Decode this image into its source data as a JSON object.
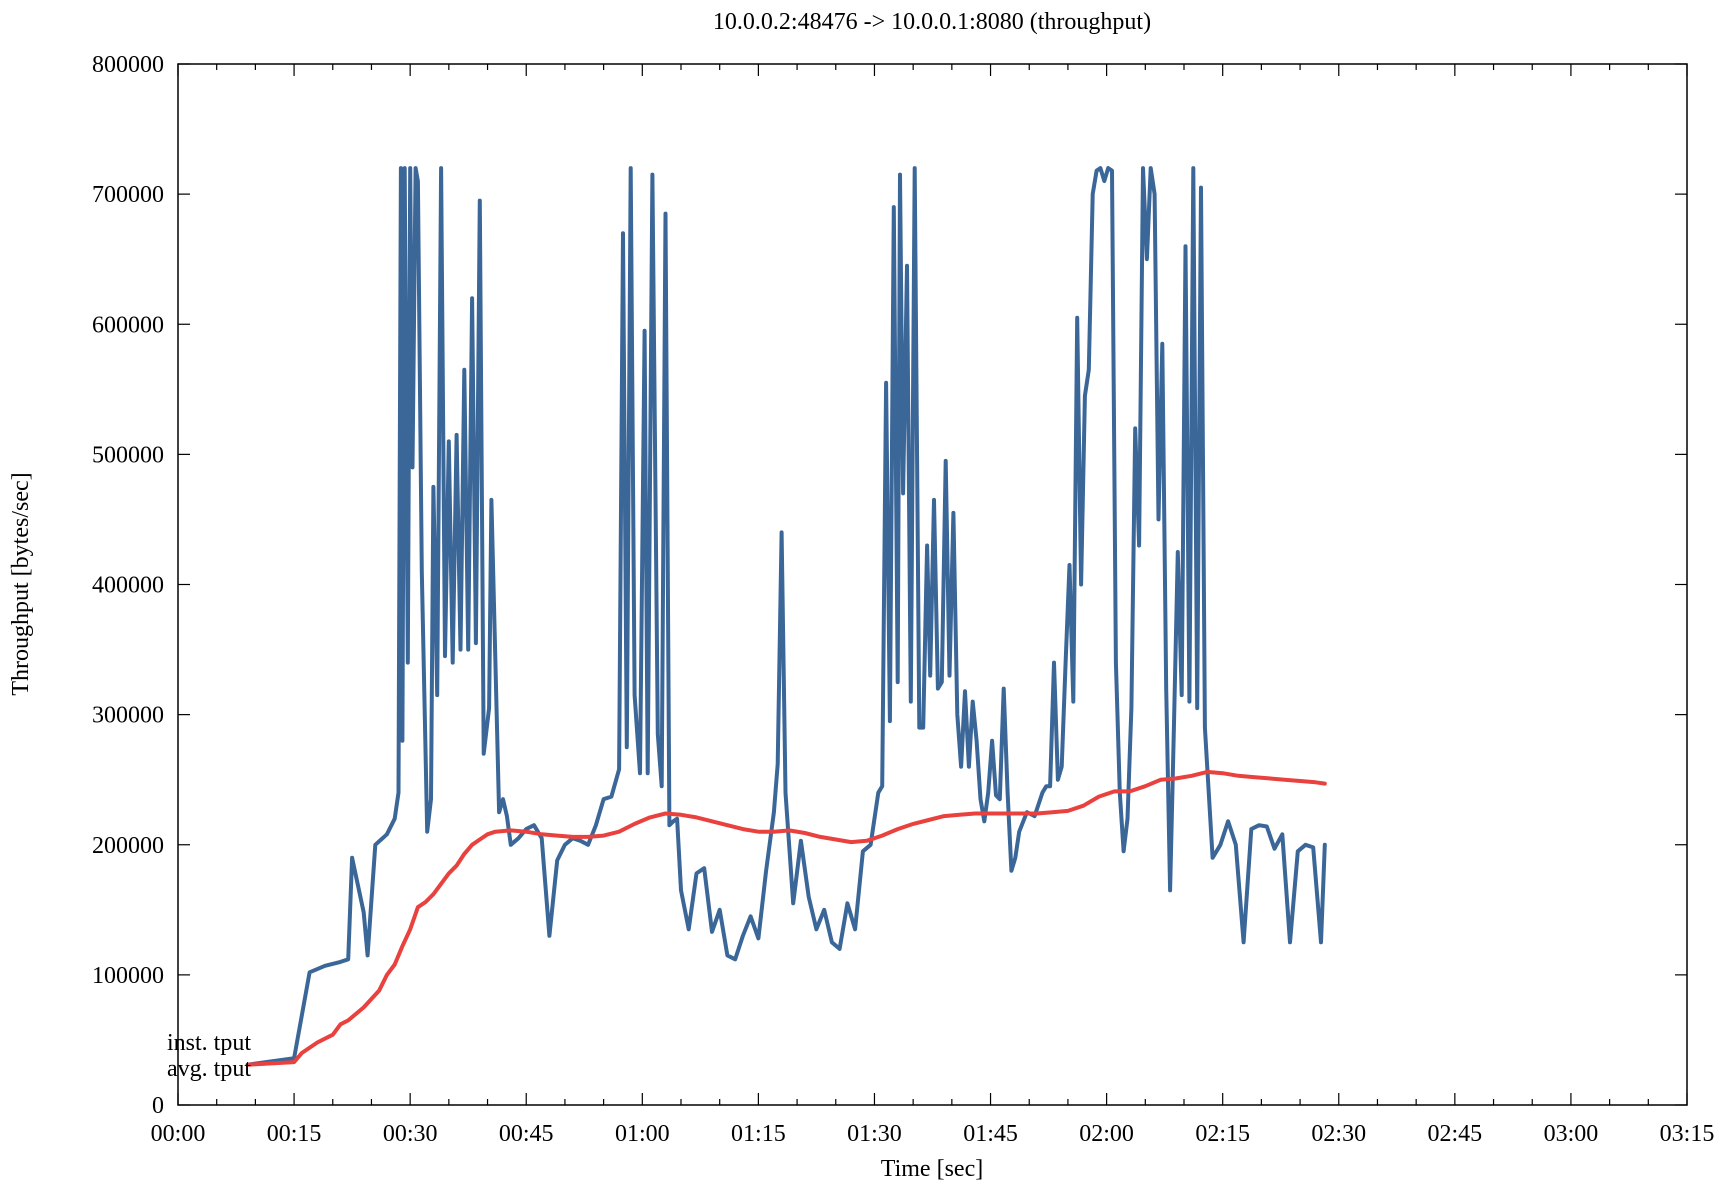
{
  "chart_data": {
    "type": "line",
    "title": "10.0.0.2:48476 -> 10.0.0.1:8080 (throughput)",
    "xlabel": "Time [sec]",
    "ylabel": "Throughput [bytes/sec]",
    "xlim": [
      0,
      195
    ],
    "ylim": [
      0,
      800000
    ],
    "x_tick_labels": [
      "00:00",
      "00:15",
      "00:30",
      "00:45",
      "01:00",
      "01:15",
      "01:30",
      "01:45",
      "02:00",
      "02:15",
      "02:30",
      "02:45",
      "03:00",
      "03:15"
    ],
    "y_tick_labels": [
      "0",
      "100000",
      "200000",
      "300000",
      "400000",
      "500000",
      "600000",
      "700000",
      "800000"
    ],
    "grid": false,
    "legend_position": "bottom-left",
    "series": [
      {
        "name": "inst. tput",
        "color": "#3b6698",
        "points": [
          [
            9,
            31000
          ],
          [
            15,
            36000
          ],
          [
            17,
            102000
          ],
          [
            19,
            107000
          ],
          [
            21,
            110000
          ],
          [
            22,
            112000
          ],
          [
            22.5,
            190000
          ],
          [
            24,
            148000
          ],
          [
            24.5,
            115000
          ],
          [
            25.5,
            200000
          ],
          [
            27,
            208000
          ],
          [
            28,
            220000
          ],
          [
            28.5,
            240000
          ],
          [
            28.8,
            720000
          ],
          [
            29,
            280000
          ],
          [
            29.3,
            720000
          ],
          [
            29.7,
            340000
          ],
          [
            30,
            720000
          ],
          [
            30.3,
            490000
          ],
          [
            30.7,
            720000
          ],
          [
            31,
            710000
          ],
          [
            31.5,
            410000
          ],
          [
            32.2,
            210000
          ],
          [
            32.7,
            235000
          ],
          [
            33,
            475000
          ],
          [
            33.5,
            315000
          ],
          [
            34,
            720000
          ],
          [
            34.5,
            345000
          ],
          [
            35,
            510000
          ],
          [
            35.5,
            340000
          ],
          [
            36,
            515000
          ],
          [
            36.5,
            350000
          ],
          [
            37,
            565000
          ],
          [
            37.5,
            350000
          ],
          [
            38,
            620000
          ],
          [
            38.5,
            355000
          ],
          [
            39,
            695000
          ],
          [
            39.5,
            270000
          ],
          [
            40.2,
            305000
          ],
          [
            40.5,
            465000
          ],
          [
            41.5,
            225000
          ],
          [
            42,
            235000
          ],
          [
            42.5,
            222000
          ],
          [
            43,
            200000
          ],
          [
            44,
            205000
          ],
          [
            45,
            212000
          ],
          [
            46,
            215000
          ],
          [
            47,
            205000
          ],
          [
            48,
            130000
          ],
          [
            49,
            188000
          ],
          [
            50,
            200000
          ],
          [
            51,
            205000
          ],
          [
            52,
            203000
          ],
          [
            53,
            200000
          ],
          [
            54,
            215000
          ],
          [
            55,
            235000
          ],
          [
            56,
            237000
          ],
          [
            57,
            258000
          ],
          [
            57.5,
            670000
          ],
          [
            58,
            275000
          ],
          [
            58.5,
            720000
          ],
          [
            59,
            315000
          ],
          [
            59.7,
            255000
          ],
          [
            60.3,
            595000
          ],
          [
            60.7,
            255000
          ],
          [
            61.3,
            715000
          ],
          [
            62,
            285000
          ],
          [
            62.5,
            245000
          ],
          [
            63,
            685000
          ],
          [
            63.5,
            215000
          ],
          [
            64,
            218000
          ],
          [
            64.5,
            220000
          ],
          [
            65,
            165000
          ],
          [
            66,
            135000
          ],
          [
            67,
            178000
          ],
          [
            68,
            182000
          ],
          [
            69,
            133000
          ],
          [
            70,
            150000
          ],
          [
            71,
            115000
          ],
          [
            72,
            112000
          ],
          [
            73,
            130000
          ],
          [
            74,
            145000
          ],
          [
            75,
            128000
          ],
          [
            76,
            180000
          ],
          [
            77,
            225000
          ],
          [
            77.5,
            262000
          ],
          [
            78,
            440000
          ],
          [
            78.5,
            240000
          ],
          [
            79.5,
            155000
          ],
          [
            80.5,
            203000
          ],
          [
            81.5,
            160000
          ],
          [
            82.5,
            135000
          ],
          [
            83.5,
            150000
          ],
          [
            84.5,
            125000
          ],
          [
            85.5,
            120000
          ],
          [
            86.5,
            155000
          ],
          [
            87.5,
            135000
          ],
          [
            88.5,
            195000
          ],
          [
            89.5,
            200000
          ],
          [
            90.5,
            240000
          ],
          [
            91,
            245000
          ],
          [
            91.5,
            555000
          ],
          [
            92,
            295000
          ],
          [
            92.5,
            690000
          ],
          [
            93,
            325000
          ],
          [
            93.3,
            715000
          ],
          [
            93.7,
            470000
          ],
          [
            94.2,
            645000
          ],
          [
            94.7,
            310000
          ],
          [
            95.2,
            720000
          ],
          [
            95.8,
            290000
          ],
          [
            96.3,
            290000
          ],
          [
            96.8,
            430000
          ],
          [
            97.2,
            330000
          ],
          [
            97.7,
            465000
          ],
          [
            98.2,
            320000
          ],
          [
            98.7,
            325000
          ],
          [
            99.2,
            495000
          ],
          [
            99.7,
            330000
          ],
          [
            100.2,
            455000
          ],
          [
            100.7,
            300000
          ],
          [
            101.2,
            260000
          ],
          [
            101.7,
            318000
          ],
          [
            102.2,
            260000
          ],
          [
            102.7,
            310000
          ],
          [
            103.2,
            280000
          ],
          [
            103.7,
            235000
          ],
          [
            104.2,
            218000
          ],
          [
            104.7,
            240000
          ],
          [
            105.2,
            280000
          ],
          [
            105.7,
            238000
          ],
          [
            106.2,
            235000
          ],
          [
            106.7,
            320000
          ],
          [
            107.2,
            240000
          ],
          [
            107.7,
            180000
          ],
          [
            108.2,
            190000
          ],
          [
            108.7,
            210000
          ],
          [
            109.7,
            225000
          ],
          [
            110.7,
            222000
          ],
          [
            111.7,
            240000
          ],
          [
            112.2,
            245000
          ],
          [
            112.7,
            245000
          ],
          [
            113.2,
            340000
          ],
          [
            113.7,
            250000
          ],
          [
            114.2,
            260000
          ],
          [
            114.7,
            340000
          ],
          [
            115.2,
            415000
          ],
          [
            115.7,
            310000
          ],
          [
            116.2,
            605000
          ],
          [
            116.7,
            400000
          ],
          [
            117.2,
            545000
          ],
          [
            117.7,
            565000
          ],
          [
            118.2,
            700000
          ],
          [
            118.7,
            718000
          ],
          [
            119.2,
            720000
          ],
          [
            119.7,
            710000
          ],
          [
            120.2,
            720000
          ],
          [
            120.7,
            718000
          ],
          [
            121.2,
            340000
          ],
          [
            121.7,
            240000
          ],
          [
            122.2,
            195000
          ],
          [
            122.7,
            220000
          ],
          [
            123.2,
            305000
          ],
          [
            123.7,
            520000
          ],
          [
            124.2,
            430000
          ],
          [
            124.7,
            720000
          ],
          [
            125.2,
            650000
          ],
          [
            125.7,
            720000
          ],
          [
            126.2,
            700000
          ],
          [
            126.7,
            450000
          ],
          [
            127.2,
            585000
          ],
          [
            127.7,
            320000
          ],
          [
            128.2,
            165000
          ],
          [
            128.7,
            290000
          ],
          [
            129.2,
            425000
          ],
          [
            129.7,
            315000
          ],
          [
            130.2,
            660000
          ],
          [
            130.7,
            310000
          ],
          [
            131.2,
            720000
          ],
          [
            131.7,
            305000
          ],
          [
            132.2,
            705000
          ],
          [
            132.7,
            290000
          ],
          [
            133.7,
            190000
          ],
          [
            134.7,
            200000
          ],
          [
            135.7,
            218000
          ],
          [
            136.7,
            200000
          ],
          [
            137.7,
            125000
          ],
          [
            138.7,
            212000
          ],
          [
            139.7,
            215000
          ],
          [
            140.7,
            214000
          ],
          [
            141.7,
            197000
          ],
          [
            142.7,
            208000
          ],
          [
            143.7,
            125000
          ],
          [
            144.7,
            195000
          ],
          [
            145.7,
            200000
          ],
          [
            146.7,
            198000
          ],
          [
            147.7,
            125000
          ],
          [
            148.2,
            200000
          ]
        ]
      },
      {
        "name": "avg. tput",
        "color": "#e8413e",
        "points": [
          [
            9,
            31000
          ],
          [
            15,
            33000
          ],
          [
            16,
            40000
          ],
          [
            18,
            48000
          ],
          [
            20,
            54000
          ],
          [
            21,
            62000
          ],
          [
            22,
            65000
          ],
          [
            24,
            75000
          ],
          [
            26,
            88000
          ],
          [
            27,
            100000
          ],
          [
            28,
            108000
          ],
          [
            29,
            122000
          ],
          [
            30,
            135000
          ],
          [
            31,
            152000
          ],
          [
            32,
            156000
          ],
          [
            33,
            162000
          ],
          [
            34,
            170000
          ],
          [
            35,
            178000
          ],
          [
            36,
            184000
          ],
          [
            37,
            193000
          ],
          [
            38,
            200000
          ],
          [
            39,
            204000
          ],
          [
            40,
            208000
          ],
          [
            41,
            210000
          ],
          [
            43,
            211000
          ],
          [
            45,
            210000
          ],
          [
            47,
            208000
          ],
          [
            49,
            207000
          ],
          [
            51,
            206000
          ],
          [
            53,
            206000
          ],
          [
            55,
            207000
          ],
          [
            57,
            210000
          ],
          [
            59,
            216000
          ],
          [
            61,
            221000
          ],
          [
            63,
            224000
          ],
          [
            65,
            223000
          ],
          [
            67,
            221000
          ],
          [
            69,
            218000
          ],
          [
            71,
            215000
          ],
          [
            73,
            212000
          ],
          [
            75,
            210000
          ],
          [
            77,
            210000
          ],
          [
            79,
            211000
          ],
          [
            81,
            209000
          ],
          [
            83,
            206000
          ],
          [
            85,
            204000
          ],
          [
            87,
            202000
          ],
          [
            89,
            203000
          ],
          [
            91,
            207000
          ],
          [
            93,
            212000
          ],
          [
            95,
            216000
          ],
          [
            97,
            219000
          ],
          [
            99,
            222000
          ],
          [
            101,
            223000
          ],
          [
            103,
            224000
          ],
          [
            105,
            224000
          ],
          [
            107,
            224000
          ],
          [
            109,
            224000
          ],
          [
            111,
            224000
          ],
          [
            113,
            225000
          ],
          [
            115,
            226000
          ],
          [
            117,
            230000
          ],
          [
            119,
            237000
          ],
          [
            121,
            241000
          ],
          [
            123,
            241000
          ],
          [
            125,
            245000
          ],
          [
            127,
            250000
          ],
          [
            129,
            251000
          ],
          [
            131,
            253000
          ],
          [
            133,
            256000
          ],
          [
            135,
            255000
          ],
          [
            137,
            253000
          ],
          [
            139,
            252000
          ],
          [
            141,
            251000
          ],
          [
            143,
            250000
          ],
          [
            145,
            249000
          ],
          [
            147,
            248000
          ],
          [
            148.2,
            247000
          ]
        ]
      }
    ]
  }
}
